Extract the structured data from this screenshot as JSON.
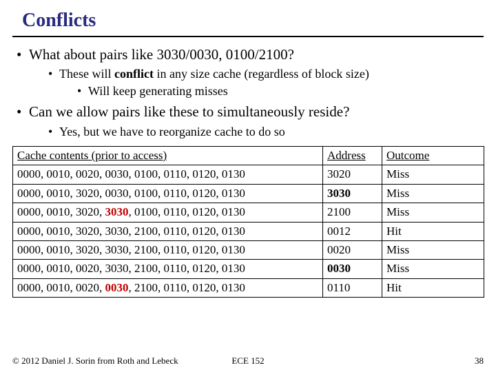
{
  "title": "Conflicts",
  "bullets": {
    "b1": "What about pairs like 3030/0030, 0100/2100?",
    "b1a_pre": "These will ",
    "b1a_bold": "conflict",
    "b1a_post": " in any size cache (regardless of block size)",
    "b1a1": "Will keep generating misses",
    "b2": "Can we allow pairs like these to simultaneously reside?",
    "b2a": "Yes, but we have to reorganize cache to do so"
  },
  "table": {
    "headers": [
      "Cache contents (prior to access)",
      "Address",
      "Outcome"
    ],
    "rows": [
      {
        "cells": [
          "0000, 0010, 0020, 0030, 0100, 0110, 0120, 0130",
          "3020",
          "Miss"
        ],
        "addr_bold": false,
        "hl": null
      },
      {
        "cells": [
          "0000, 0010, 3020, 0030, 0100, 0110, 0120, 0130",
          "3030",
          "Miss"
        ],
        "addr_bold": true,
        "hl": null
      },
      {
        "cells_parts": [
          "0000, 0010, 3020, ",
          "3030",
          ", 0100, 0110, 0120, 0130"
        ],
        "addr": "2100",
        "out": "Miss",
        "addr_bold": false,
        "hl": "red"
      },
      {
        "cells": [
          "0000, 0010, 3020, 3030, 2100, 0110, 0120, 0130",
          "0012",
          "Hit"
        ],
        "addr_bold": false,
        "hl": null
      },
      {
        "cells": [
          "0000, 0010, 3020, 3030, 2100, 0110, 0120, 0130",
          "0020",
          "Miss"
        ],
        "addr_bold": false,
        "hl": null
      },
      {
        "cells": [
          "0000, 0010, 0020, 3030, 2100, 0110, 0120, 0130",
          "0030",
          "Miss"
        ],
        "addr_bold": true,
        "hl": null
      },
      {
        "cells_parts": [
          "0000, 0010, 0020, ",
          "0030",
          ", 2100, 0110, 0120, 0130"
        ],
        "addr": "0110",
        "out": "Hit",
        "addr_bold": false,
        "hl": "red"
      }
    ]
  },
  "footer": {
    "copyright": "© 2012 Daniel J. Sorin from Roth and Lebeck",
    "course": "ECE 152",
    "pagenum": "38"
  }
}
